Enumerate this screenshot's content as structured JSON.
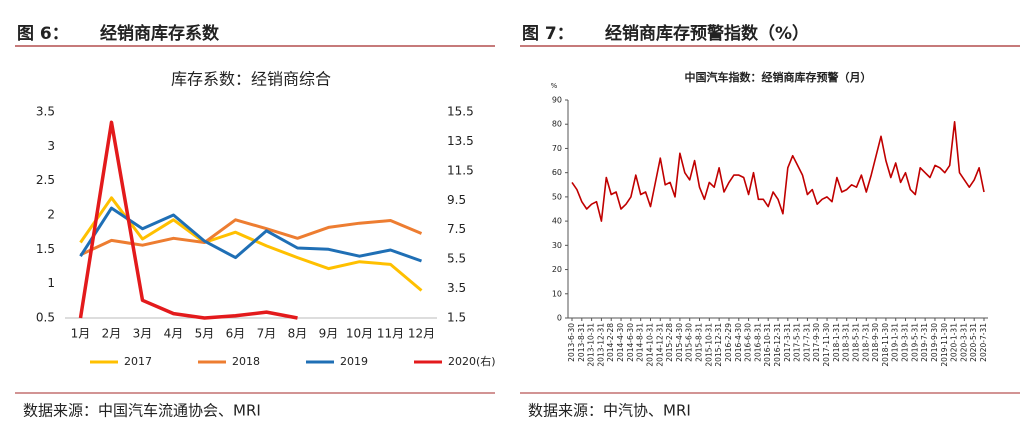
{
  "chart_data": [
    {
      "type": "line",
      "figure_label": "图 6：",
      "heading": "经销商库存系数",
      "source": "数据来源：中国汽车流通协会、MRI",
      "title": "库存系数：经销商综合",
      "categories": [
        "1月",
        "2月",
        "3月",
        "4月",
        "5月",
        "6月",
        "7月",
        "8月",
        "9月",
        "10月",
        "11月",
        "12月"
      ],
      "ylim": [
        0.5,
        3.5
      ],
      "yticks": [
        0.5,
        1,
        1.5,
        2,
        2.5,
        3,
        3.5
      ],
      "y2lim": [
        1.5,
        15.5
      ],
      "y2ticks": [
        1.5,
        3.5,
        5.5,
        7.5,
        9.5,
        11.5,
        13.5,
        15.5
      ],
      "legend": "bottom",
      "series": [
        {
          "name": "2017",
          "color": "#FFC000",
          "values": [
            1.6,
            2.25,
            1.65,
            1.93,
            1.6,
            1.75,
            1.55,
            1.38,
            1.22,
            1.32,
            1.28,
            0.9
          ]
        },
        {
          "name": "2018",
          "color": "#ED7D31",
          "values": [
            1.42,
            1.63,
            1.56,
            1.66,
            1.6,
            1.93,
            1.8,
            1.66,
            1.82,
            1.88,
            1.92,
            1.73
          ]
        },
        {
          "name": "2019",
          "color": "#1F6FB5",
          "values": [
            1.4,
            2.1,
            1.8,
            2.0,
            1.62,
            1.38,
            1.77,
            1.52,
            1.5,
            1.4,
            1.49,
            1.33
          ]
        },
        {
          "name": "2020(右)",
          "color": "#E31A1C",
          "axis": "y2",
          "values": [
            1.5,
            14.8,
            2.7,
            1.8,
            1.5,
            1.65,
            1.9,
            1.5,
            null,
            null,
            null,
            null
          ]
        }
      ]
    },
    {
      "type": "line",
      "figure_label": "图 7：",
      "heading": "经销商库存预警指数（%）",
      "source": "数据来源：中汽协、MRI",
      "title": "中国汽车指数：经销商库存预警（月）",
      "y_label": "%",
      "color": "#C00000",
      "ylim": [
        0,
        90
      ],
      "yticks": [
        0,
        10,
        20,
        30,
        40,
        50,
        60,
        70,
        80,
        90
      ],
      "categories": [
        "2013-6-30",
        null,
        "2013-8-31",
        null,
        "2013-10-31",
        null,
        "2013-12-31",
        null,
        "2014-2-28",
        null,
        "2014-4-30",
        null,
        "2014-6-30",
        null,
        "2014-8-31",
        null,
        "2014-10-31",
        null,
        "2014-12-31",
        null,
        "2015-2-28",
        null,
        "2015-4-30",
        null,
        "2015-6-30",
        null,
        "2015-8-31",
        null,
        "2015-10-31",
        null,
        "2015-12-31",
        null,
        "2016-2-29",
        null,
        "2016-4-30",
        null,
        "2016-6-30",
        null,
        "2016-8-31",
        null,
        "2016-10-31",
        null,
        "2016-12-31",
        null,
        "2017-3-31",
        null,
        "2017-5-31",
        null,
        "2017-7-31",
        null,
        "2017-9-30",
        null,
        "2017-11-30",
        null,
        "2018-1-31",
        null,
        "2018-3-31",
        null,
        "2018-5-31",
        null,
        "2018-7-31",
        null,
        "2018-9-30",
        null,
        "2018-11-30",
        null,
        "2019-1-31",
        null,
        "2019-3-31",
        null,
        "2019-5-31",
        null,
        "2019-7-31",
        null,
        "2019-9-30",
        null,
        "2019-11-30",
        null,
        "2020-1-31",
        null,
        "2020-3-31",
        null,
        "2020-5-31",
        null,
        "2020-7-31"
      ],
      "values": [
        56,
        53,
        48,
        45,
        47,
        48,
        40,
        58,
        51,
        52,
        45,
        47,
        50,
        59,
        51,
        52,
        46,
        56,
        66,
        55,
        56,
        50,
        68,
        60,
        57,
        65,
        54,
        49,
        56,
        54,
        62,
        52,
        56,
        59,
        59,
        58,
        51,
        60,
        49,
        49,
        46,
        52,
        49,
        43,
        62,
        67,
        63,
        59,
        51,
        53,
        47,
        49,
        50,
        48,
        58,
        52,
        53,
        55,
        54,
        59,
        52,
        59,
        67,
        75,
        65,
        58,
        64,
        56,
        60,
        53,
        51,
        62,
        60,
        58,
        63,
        62,
        60,
        63,
        81,
        60,
        57,
        54,
        57,
        62,
        52
      ]
    }
  ]
}
